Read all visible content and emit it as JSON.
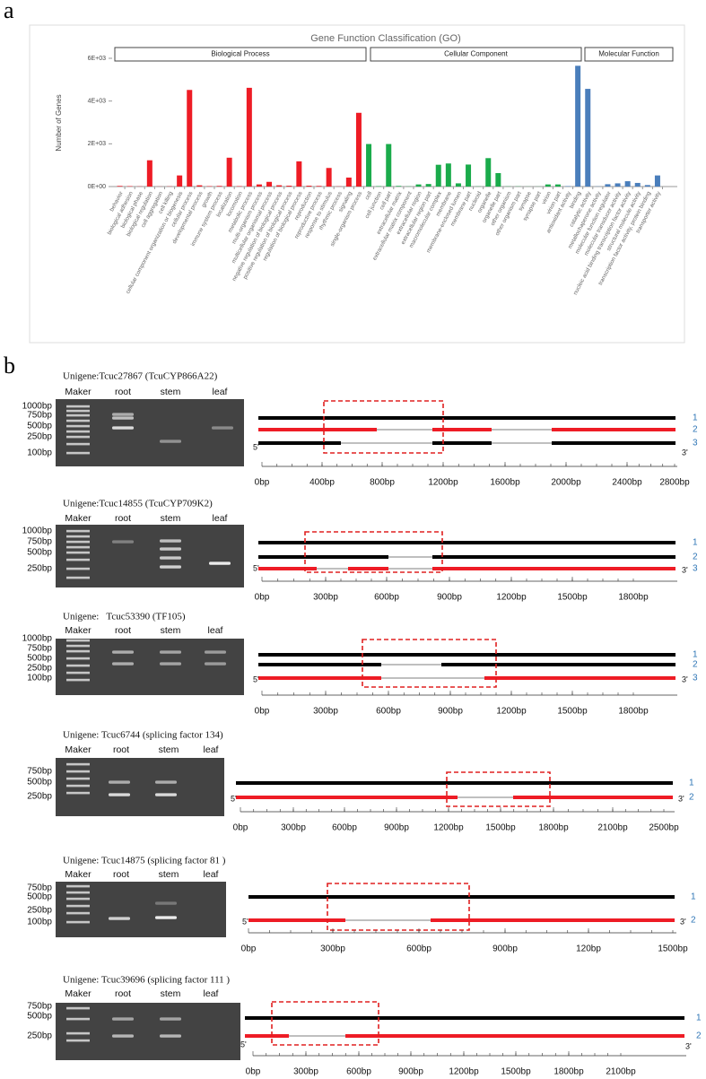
{
  "panel_labels": [
    "a",
    "b"
  ],
  "chart_data": {
    "type": "bar",
    "title": "Gene Function Classification (GO)",
    "y_label": "Number of Genes",
    "ylim": [
      0,
      6000
    ],
    "yticks": [
      {
        "value": 0,
        "label": "0E+00"
      },
      {
        "value": 2000,
        "label": "2E+03"
      },
      {
        "value": 4000,
        "label": "4E+03"
      },
      {
        "value": 6000,
        "label": "6E+03"
      }
    ],
    "groups": [
      {
        "name": "Biological Process",
        "color": "#ee1c25",
        "categories": [
          "behavior",
          "biological adhesion",
          "biological phase",
          "biological regulation",
          "cell aggregation",
          "cell killing",
          "cellular component organization or biogenesis",
          "cellular process",
          "developmental process",
          "growth",
          "immune system process",
          "localization",
          "locomotion",
          "metabolic process",
          "multi-organism process",
          "multicellular organismal process",
          "negative regulation of biological process",
          "positive regulation of biological process",
          "regulation of biological process",
          "reproduction",
          "reproductive process",
          "response to stimulus",
          "rhythmic process",
          "signaling",
          "single-organism process"
        ],
        "values": [
          30,
          20,
          10,
          1230,
          5,
          10,
          520,
          4520,
          60,
          20,
          30,
          1350,
          20,
          4620,
          100,
          220,
          60,
          40,
          1180,
          40,
          30,
          870,
          10,
          420,
          3450
        ]
      },
      {
        "name": "Cellular Component",
        "color": "#1aab4b",
        "categories": [
          "cell",
          "cell junction",
          "cell part",
          "extracellular matrix",
          "extracellular matrix component",
          "extracellular region",
          "extracellular region part",
          "macromolecular complex",
          "membrane",
          "membrane-enclosed lumen",
          "membrane part",
          "nucleoid",
          "organelle",
          "organelle part",
          "other organism",
          "other organism part",
          "synapse",
          "synapse part",
          "virion",
          "virion part"
        ],
        "values": [
          1990,
          20,
          1990,
          30,
          10,
          100,
          120,
          1020,
          1080,
          150,
          1030,
          10,
          1330,
          630,
          10,
          10,
          5,
          5,
          100,
          100
        ]
      },
      {
        "name": "Molecular Function",
        "color": "#4a7ebb",
        "categories": [
          "antioxidant activity",
          "binding",
          "catalytic activity",
          "metallochaperone activity",
          "molecular function regulator",
          "molecular transducer activity",
          "nucleic acid binding transcription factor activity",
          "structural molecule activity",
          "transcription factor activity, protein binding",
          "transporter activity"
        ],
        "values": [
          20,
          5650,
          4570,
          10,
          110,
          150,
          250,
          170,
          70,
          520
        ]
      }
    ]
  },
  "gels": [
    {
      "title": "Unigene:Tcuc27867 (TcuCYP866A22)",
      "lanes": [
        "Maker",
        "root",
        "stem",
        "leaf"
      ],
      "ladder": [
        "1000bp",
        "750bp",
        "500bp",
        "250bp",
        "100bp"
      ],
      "isoforms": [
        {
          "label": "1",
          "color": "#000000"
        },
        {
          "label": "2",
          "color": "#ee1c25"
        },
        {
          "label": "3",
          "color": "#000000"
        }
      ],
      "end_labels": [
        "5'",
        "3'"
      ],
      "ticks": [
        "0bp",
        "400bp",
        "800bp",
        "1200bp",
        "1600bp",
        "2000bp",
        "2400bp",
        "2800bp"
      ]
    },
    {
      "title": "Unigene:Tcuc14855 (TcuCYP709K2)",
      "lanes": [
        "Maker",
        "root",
        "stem",
        "leaf"
      ],
      "ladder": [
        "1000bp",
        "750bp",
        "500bp",
        "250bp"
      ],
      "isoforms": [
        {
          "label": "1",
          "color": "#000000"
        },
        {
          "label": "2",
          "color": "#000000"
        },
        {
          "label": "3",
          "color": "#ee1c25"
        }
      ],
      "end_labels": [
        "5'",
        "3'"
      ],
      "ticks": [
        "0bp",
        "300bp",
        "600bp",
        "900bp",
        "1200bp",
        "1500bp",
        "1800bp"
      ]
    },
    {
      "title": "Unigene:   Tcuc53390 (TF105)",
      "lanes": [
        "Maker",
        "root",
        "stem",
        "leaf"
      ],
      "ladder": [
        "1000bp",
        "750bp",
        "500bp",
        "250bp",
        "100bp"
      ],
      "isoforms": [
        {
          "label": "1",
          "color": "#000000"
        },
        {
          "label": "2",
          "color": "#000000"
        },
        {
          "label": "3",
          "color": "#ee1c25"
        }
      ],
      "end_labels": [
        "5'",
        "3'"
      ],
      "ticks": [
        "0bp",
        "300bp",
        "600bp",
        "900bp",
        "1200bp",
        "1500bp",
        "1800bp"
      ]
    },
    {
      "title": "Unigene: Tcuc6744 (splicing factor 134)",
      "lanes": [
        "Maker",
        "root",
        "stem",
        "leaf"
      ],
      "ladder": [
        "750bp",
        "500bp",
        "250bp"
      ],
      "isoforms": [
        {
          "label": "1",
          "color": "#000000"
        },
        {
          "label": "2",
          "color": "#ee1c25"
        }
      ],
      "end_labels": [
        "5'",
        "3'"
      ],
      "ticks": [
        "0bp",
        "300bp",
        "600bp",
        "900bp",
        "1200bp",
        "1500bp",
        "1800bp",
        "2100bp",
        "2500bp"
      ]
    },
    {
      "title": "Unigene: Tcuc14875 (splicing factor 81 )",
      "lanes": [
        "Maker",
        "root",
        "stem",
        "leaf"
      ],
      "ladder": [
        "750bp",
        "500bp",
        "250bp",
        "100bp"
      ],
      "isoforms": [
        {
          "label": "1",
          "color": "#000000"
        },
        {
          "label": "2",
          "color": "#ee1c25"
        }
      ],
      "end_labels": [
        "5'",
        "3'"
      ],
      "ticks": [
        "0bp",
        "300bp",
        "600bp",
        "900bp",
        "120bp",
        "1500bp"
      ]
    },
    {
      "title": "Unigene: Tcuc39696 (splicing factor 111 )",
      "lanes": [
        "Maker",
        "root",
        "stem",
        "leaf"
      ],
      "ladder": [
        "750bp",
        "500bp",
        "250bp"
      ],
      "isoforms": [
        {
          "label": "1",
          "color": "#000000"
        },
        {
          "label": "2",
          "color": "#ee1c25"
        }
      ],
      "end_labels": [
        "5'",
        "3'"
      ],
      "ticks": [
        "0bp",
        "300bp",
        "600bp",
        "900bp",
        "1200bp",
        "1500bp",
        "1800bp",
        "2100bp"
      ]
    }
  ]
}
